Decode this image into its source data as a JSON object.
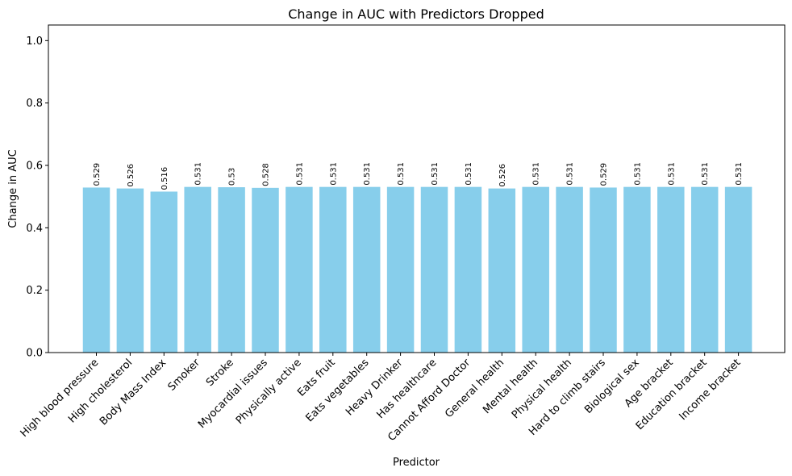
{
  "chart_data": {
    "type": "bar",
    "title": "Change in AUC with Predictors Dropped",
    "xlabel": "Predictor",
    "ylabel": "Change in AUC",
    "categories": [
      "High blood pressure",
      "High cholesterol",
      "Body Mass Index",
      "Smoker",
      "Stroke",
      "Myocardial issues",
      "Physically active",
      "Eats fruit",
      "Eats vegetables",
      "Heavy Drinker",
      "Has healthcare",
      "Cannot Afford Doctor",
      "General health",
      "Mental health",
      "Physical health",
      "Hard to climb stairs",
      "Biological sex",
      "Age bracket",
      "Education bracket",
      "Income bracket"
    ],
    "values": [
      0.529,
      0.526,
      0.516,
      0.531,
      0.53,
      0.528,
      0.531,
      0.531,
      0.531,
      0.531,
      0.531,
      0.531,
      0.526,
      0.531,
      0.531,
      0.529,
      0.531,
      0.531,
      0.531,
      0.531
    ],
    "value_labels": [
      "0.529",
      "0.526",
      "0.516",
      "0.531",
      "0.53",
      "0.528",
      "0.531",
      "0.531",
      "0.531",
      "0.531",
      "0.531",
      "0.531",
      "0.526",
      "0.531",
      "0.531",
      "0.529",
      "0.531",
      "0.531",
      "0.531",
      "0.531"
    ],
    "ylim": [
      0,
      1.05
    ],
    "yticks": [
      0.0,
      0.2,
      0.4,
      0.6,
      0.8,
      1.0
    ],
    "ytick_labels": [
      "0.0",
      "0.2",
      "0.4",
      "0.6",
      "0.8",
      "1.0"
    ],
    "bar_color": "#87ceeb",
    "grid": false,
    "legend": "none"
  }
}
